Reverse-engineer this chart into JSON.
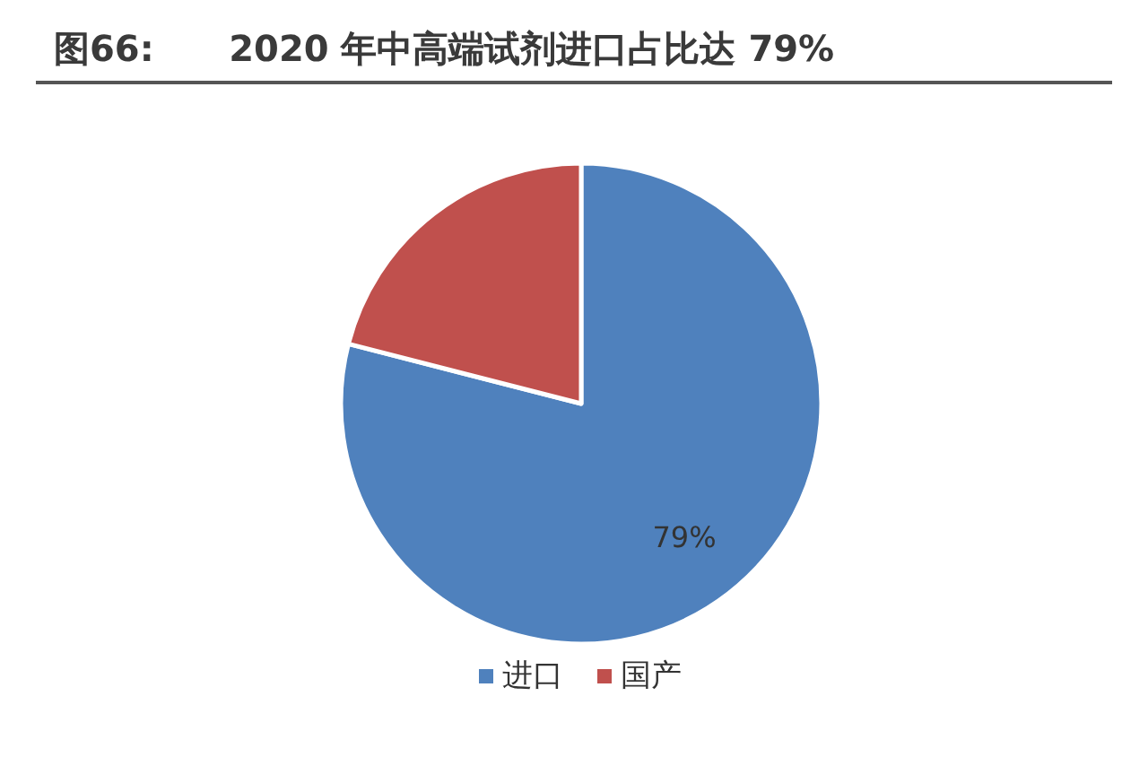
{
  "chart_data": {
    "type": "pie",
    "title": "图66:      2020 年中高端试剂进口占比达 79%",
    "categories": [
      "进口",
      "国产"
    ],
    "values": [
      79,
      21
    ],
    "colors": [
      "#4f81bd",
      "#c0504d"
    ],
    "value_labels": [
      "79%",
      null
    ],
    "legend": "bottom"
  }
}
